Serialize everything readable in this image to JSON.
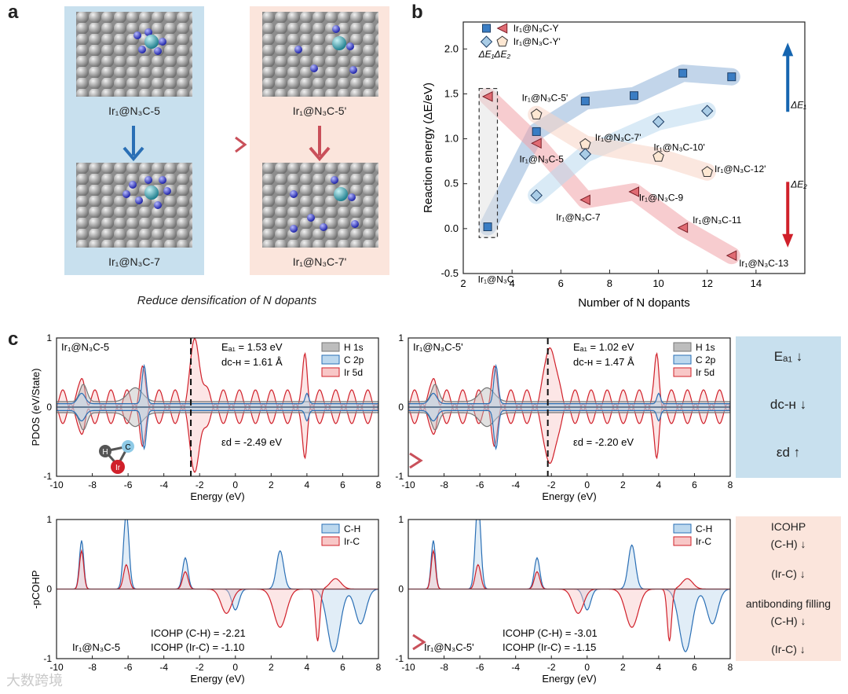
{
  "panel_a": {
    "letter": "a",
    "captions": [
      "Ir₁@N₃C-5",
      "Ir₁@N₃C-7",
      "Ir₁@N₃C-5'",
      "Ir₁@N₃C-7'"
    ],
    "bottom_caption": "Reduce densification of N dopants"
  },
  "panel_b": {
    "letter": "b",
    "xlabel": "Number of N dopants",
    "ylabel": "Reaction energy (ΔE/eV)",
    "legend": [
      "Ir₁@N₃C-Y",
      "Ir₁@N₃C-Y'",
      "ΔE₁",
      "ΔE₂"
    ],
    "labels": [
      "Ir₁@N₃C",
      "Ir₁@N₃C-5'",
      "Ir₁@N₃C-5",
      "Ir₁@N₃C-7'",
      "Ir₁@N₃C-7",
      "Ir₁@N₃C-9",
      "Ir₁@N₃C-10'",
      "Ir₁@N₃C-11",
      "Ir₁@N₃C-12'",
      "Ir₁@N₃C-13"
    ],
    "arrow_labels": [
      "ΔE₁",
      "ΔE₂"
    ]
  },
  "panel_c": {
    "letter": "c",
    "pdos_ylabel": "PDOS (eV/State)",
    "cohp_ylabel": "-pCOHP",
    "xlabel": "Energy (eV)",
    "left_title": "Ir₁@N₃C-5",
    "right_title": "Ir₁@N₃C-5'",
    "left_ea": "Eₐ₁ = 1.53 eV",
    "left_dch": "dᴄ-ʜ = 1.61 Å",
    "left_ed": "εd = -2.49 eV",
    "right_ea": "Eₐ₁ = 1.02 eV",
    "right_dch": "dᴄ-ʜ = 1.47 Å",
    "right_ed": "εd = -2.20 eV",
    "pdos_legend": [
      "H 1s",
      "C 2p",
      "Ir 5d"
    ],
    "cohp_legend": [
      "C-H",
      "Ir-C"
    ],
    "left_icohp_ch": "ICOHP (C-H) = -2.21",
    "left_icohp_irc": "ICOHP (Ir-C) = -1.10",
    "right_icohp_ch": "ICOHP (C-H) = -3.01",
    "right_icohp_irc": "ICOHP (Ir-C) = -1.15",
    "molecule_atoms": [
      "H",
      "C",
      "Ir"
    ],
    "side_top": [
      "Eₐ₁ ↓",
      "dᴄ-ʜ ↓",
      "εd ↑"
    ],
    "side_bottom": [
      "ICOHP",
      "(C-H) ↓",
      "(Ir-C) ↓",
      "antibonding filling",
      "(C-H) ↓",
      "(Ir-C) ↓"
    ]
  },
  "watermark": "大数跨境",
  "chart_data": [
    {
      "type": "scatter",
      "xlabel": "Number of N dopants",
      "ylabel": "Reaction energy (ΔE/eV)",
      "xlim": [
        2,
        16
      ],
      "ylim": [
        -0.5,
        2.3
      ],
      "series": [
        {
          "name": "Ir₁@N₃C-Y ΔE₁",
          "x": [
            3,
            5,
            7,
            9,
            11,
            13
          ],
          "y": [
            0.02,
            1.08,
            1.42,
            1.48,
            1.73,
            1.69
          ]
        },
        {
          "name": "Ir₁@N₃C-Y ΔE₂",
          "x": [
            3,
            5,
            7,
            9,
            11,
            13
          ],
          "y": [
            1.47,
            0.95,
            0.32,
            0.41,
            0.01,
            -0.3
          ]
        },
        {
          "name": "Ir₁@N₃C-Y' ΔE₁",
          "x": [
            5,
            7,
            10,
            12
          ],
          "y": [
            0.37,
            0.83,
            1.19,
            1.31
          ]
        },
        {
          "name": "Ir₁@N₃C-Y' ΔE₂",
          "x": [
            5,
            7,
            10,
            12
          ],
          "y": [
            1.27,
            0.94,
            0.8,
            0.63
          ]
        }
      ]
    },
    {
      "type": "line",
      "xlim": [
        -10,
        8
      ],
      "ylim": [
        -1,
        1
      ],
      "description_series": [
        "H 1s",
        "C 2p",
        "Ir 5d"
      ]
    },
    {
      "type": "line",
      "xlim": [
        -10,
        8
      ],
      "ylim": [
        -1,
        1
      ],
      "description_series": [
        "C-H",
        "Ir-C"
      ]
    }
  ]
}
